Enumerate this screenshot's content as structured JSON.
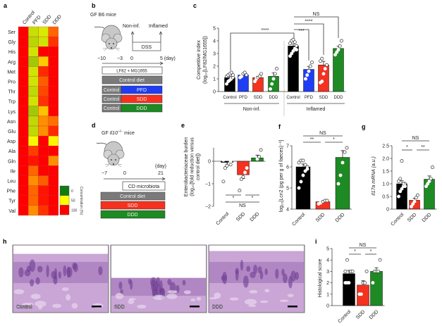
{
  "panel_labels": {
    "a": "a",
    "b": "b",
    "c": "c",
    "d": "d",
    "e": "e",
    "f": "f",
    "g": "g",
    "h": "h",
    "i": "i"
  },
  "colors": {
    "Control": "#000000",
    "PFD": "#1f3df2",
    "SDD": "#f5311f",
    "DDD": "#1d8a23",
    "diet_gray": "#7a7a7a"
  },
  "panel_b": {
    "title": "GF B6 mice",
    "non_inf": "Non-inf.",
    "inflamed": "Inflamed",
    "dss": "DSS",
    "timeline": [
      "−10",
      "−3",
      "0",
      "5 (day)"
    ],
    "inoculum": "LF82 + MG1655",
    "control_diet": "Control diet",
    "rows": [
      {
        "left": "Control",
        "right": "PFD"
      },
      {
        "left": "Control",
        "right": "SDD"
      },
      {
        "left": "Control",
        "right": "DDD"
      }
    ]
  },
  "panel_d": {
    "title_prefix": "GF ",
    "gene": "Il10",
    "superscript": "−/−",
    "title_suffix": " mice",
    "day_unit": "(day)",
    "timeline": [
      "−7",
      "0",
      "21"
    ],
    "microbiota": "CD microbiota",
    "rows": [
      "Control diet",
      "SDD",
      "DDD"
    ]
  },
  "panel_h": {
    "images": [
      "Control",
      "SDD",
      "DDD"
    ]
  },
  "chart_data": [
    {
      "panel": "a",
      "type": "heatmap",
      "columns": [
        "Control",
        "PFD",
        "SDD",
        "DDD"
      ],
      "rows": [
        "Ser",
        "Gly",
        "His",
        "Arg",
        "Met",
        "Pro",
        "Thr",
        "Trp",
        "Lys",
        "Asn",
        "Glu",
        "Asp",
        "Ala",
        "Gln",
        "Ile",
        "Leu",
        "Phe",
        "Tyr",
        "Val"
      ],
      "values": [
        [
          100,
          38,
          42,
          80
        ],
        [
          100,
          35,
          40,
          90
        ],
        [
          100,
          40,
          100,
          100
        ],
        [
          100,
          30,
          60,
          100
        ],
        [
          100,
          40,
          92,
          100
        ],
        [
          100,
          40,
          82,
          100
        ],
        [
          100,
          36,
          86,
          100
        ],
        [
          100,
          40,
          90,
          100
        ],
        [
          100,
          30,
          62,
          100
        ],
        [
          100,
          36,
          72,
          78
        ],
        [
          100,
          36,
          72,
          92
        ],
        [
          100,
          48,
          100,
          52
        ],
        [
          100,
          88,
          100,
          100
        ],
        [
          100,
          96,
          100,
          72
        ],
        [
          100,
          80,
          100,
          100
        ],
        [
          100,
          72,
          82,
          100
        ],
        [
          100,
          80,
          96,
          100
        ],
        [
          100,
          80,
          96,
          100
        ],
        [
          100,
          72,
          90,
          100
        ]
      ],
      "legend": {
        "title": "Concentration (%)",
        "ticks": [
          "0",
          "50",
          "100"
        ],
        "colors": [
          "#127a12",
          "#ffff00",
          "#ff0000"
        ]
      }
    },
    {
      "panel": "c",
      "type": "bar",
      "categories": [
        "Control",
        "PFD",
        "SDD",
        "DDD",
        "Control",
        "PFD",
        "SDD",
        "DDD"
      ],
      "groups": [
        {
          "label": "Non-inf."
        },
        {
          "label": "Inflamed"
        }
      ],
      "values": [
        1.1,
        1.3,
        1.1,
        1.2,
        3.6,
        1.75,
        2.1,
        3.4
      ],
      "points": [
        [
          0.6,
          0.8,
          0.9,
          1.0,
          1.1,
          1.2,
          1.3,
          1.4,
          1.5,
          1.3
        ],
        [
          1.1,
          1.2,
          1.4,
          1.5,
          1.3
        ],
        [
          0.8,
          1.0,
          1.1,
          1.2,
          1.4
        ],
        [
          0.2,
          0.6,
          1.0,
          1.4,
          1.8
        ],
        [
          2.8,
          3.0,
          3.2,
          3.4,
          3.6,
          3.8,
          4.0,
          4.1,
          3.9,
          3.3
        ],
        [
          1.0,
          1.3,
          1.6,
          2.0,
          2.3
        ],
        [
          0.7,
          0.8,
          1.4,
          1.8,
          2.1,
          2.4,
          2.6
        ],
        [
          2.9,
          3.1,
          3.3,
          3.6,
          4.0
        ]
      ],
      "ylabel": [
        "Competitive index",
        "(log₁₀[LF82/MG1655])"
      ],
      "ylim": [
        0,
        5
      ],
      "yticks": [
        "0",
        "1",
        "2",
        "3",
        "4",
        "5"
      ],
      "significance": [
        {
          "label": "****"
        },
        {
          "label": "***"
        },
        {
          "label": "****"
        },
        {
          "label": "NS"
        }
      ]
    },
    {
      "panel": "e",
      "type": "bar",
      "categories": [
        "Control",
        "SDD",
        "DDD"
      ],
      "values": [
        -0.05,
        -0.6,
        0.15
      ],
      "points": [
        [
          -0.9,
          -0.3,
          -0.2,
          -0.1,
          0,
          0.05,
          0.1,
          0.2,
          0.3,
          -0.15
        ],
        [
          -1.3,
          -0.8,
          -0.7,
          -0.5,
          -0.3
        ],
        [
          -0.2,
          -0.1,
          0.1,
          0.2,
          0.5
        ]
      ],
      "ylabel": [
        "Enterobacteriaceae burden",
        "(log₁₀[fold reduction versus",
        "control diet])"
      ],
      "ylim": [
        -2,
        0.6
      ],
      "yticks": [
        "0",
        "−1",
        "−2"
      ],
      "ytick_values": [
        0,
        -1,
        -2
      ],
      "significance": [
        {
          "label": "*"
        },
        {
          "label": "*"
        },
        {
          "label": "NS"
        }
      ]
    },
    {
      "panel": "f",
      "type": "bar",
      "categories": [
        "Control",
        "SDD",
        "DDD"
      ],
      "values": [
        6.0,
        4.35,
        6.45
      ],
      "points": [
        [
          5.0,
          5.3,
          5.6,
          5.8,
          6.0,
          6.2,
          6.3,
          6.3,
          6.1,
          5.9
        ],
        [
          4.25,
          4.3,
          4.35,
          4.4,
          4.4
        ],
        [
          5.2,
          5.6,
          6.2,
          6.7,
          6.9
        ]
      ],
      "ylabel": [
        "log₁₀[Lcn2 (pg per g of faeces)⁻¹]"
      ],
      "ylim": [
        4,
        7
      ],
      "yticks": [
        "4",
        "5",
        "6",
        "7"
      ],
      "ytick_values": [
        4,
        5,
        6,
        7
      ],
      "significance": [
        {
          "label": "NS"
        },
        {
          "label": "**"
        },
        {
          "label": "*"
        }
      ]
    },
    {
      "panel": "g",
      "type": "bar",
      "categories": [
        "Control",
        "SDD",
        "DDD"
      ],
      "values": [
        1.0,
        0.35,
        1.18
      ],
      "points": [
        [
          0.5,
          0.7,
          0.8,
          0.9,
          1.0,
          1.1,
          1.2,
          1.9,
          1.0,
          0.9
        ],
        [
          0.1,
          0.2,
          0.3,
          0.45,
          0.55
        ],
        [
          0.9,
          1.0,
          1.1,
          1.2,
          1.65
        ]
      ],
      "ylabel": [
        "Il17a mRNA (a.u.)"
      ],
      "ylim": [
        0,
        2.5
      ],
      "yticks": [
        "0",
        "0.5",
        "1.0",
        "1.5",
        "2.0",
        "2.5"
      ],
      "ytick_values": [
        0,
        0.5,
        1,
        1.5,
        2,
        2.5
      ],
      "significance": [
        {
          "label": "NS"
        },
        {
          "label": "*"
        },
        {
          "label": "**"
        }
      ]
    },
    {
      "panel": "i",
      "type": "bar",
      "categories": [
        "Control",
        "SDD",
        "DDD"
      ],
      "values": [
        2.8,
        1.8,
        3.0
      ],
      "points": [
        [
          2,
          2,
          2,
          3,
          3,
          3,
          4
        ],
        [
          1,
          1,
          2,
          2,
          3
        ],
        [
          2,
          3,
          3,
          3,
          4
        ]
      ],
      "ylabel": [
        "Histological score"
      ],
      "ylim": [
        0,
        5
      ],
      "yticks": [
        "0",
        "1",
        "2",
        "3",
        "4",
        "5"
      ],
      "ytick_values": [
        0,
        1,
        2,
        3,
        4,
        5
      ],
      "significance": [
        {
          "label": "NS"
        },
        {
          "label": "*"
        },
        {
          "label": "*"
        }
      ]
    }
  ]
}
